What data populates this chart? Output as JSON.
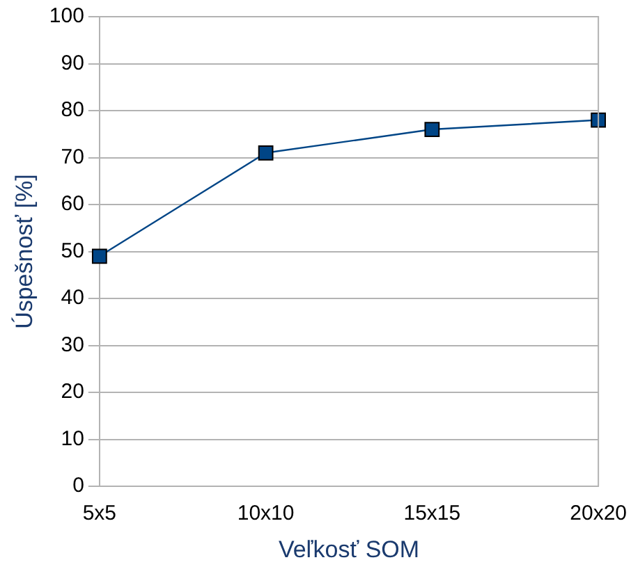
{
  "chart_data": {
    "type": "line",
    "xlabel": "Veľkosť SOM",
    "ylabel": "Úspešnosť [%]",
    "categories": [
      "5x5",
      "10x10",
      "15x15",
      "20x20"
    ],
    "series": [
      {
        "color": "#004586",
        "values": [
          49,
          71,
          76,
          78
        ]
      }
    ],
    "ylim": [
      0,
      100
    ],
    "yticks": [
      0,
      10,
      20,
      30,
      40,
      50,
      60,
      70,
      80,
      90,
      100
    ],
    "grid": "y",
    "legend": false,
    "marker": "square",
    "line_style": "solid"
  }
}
